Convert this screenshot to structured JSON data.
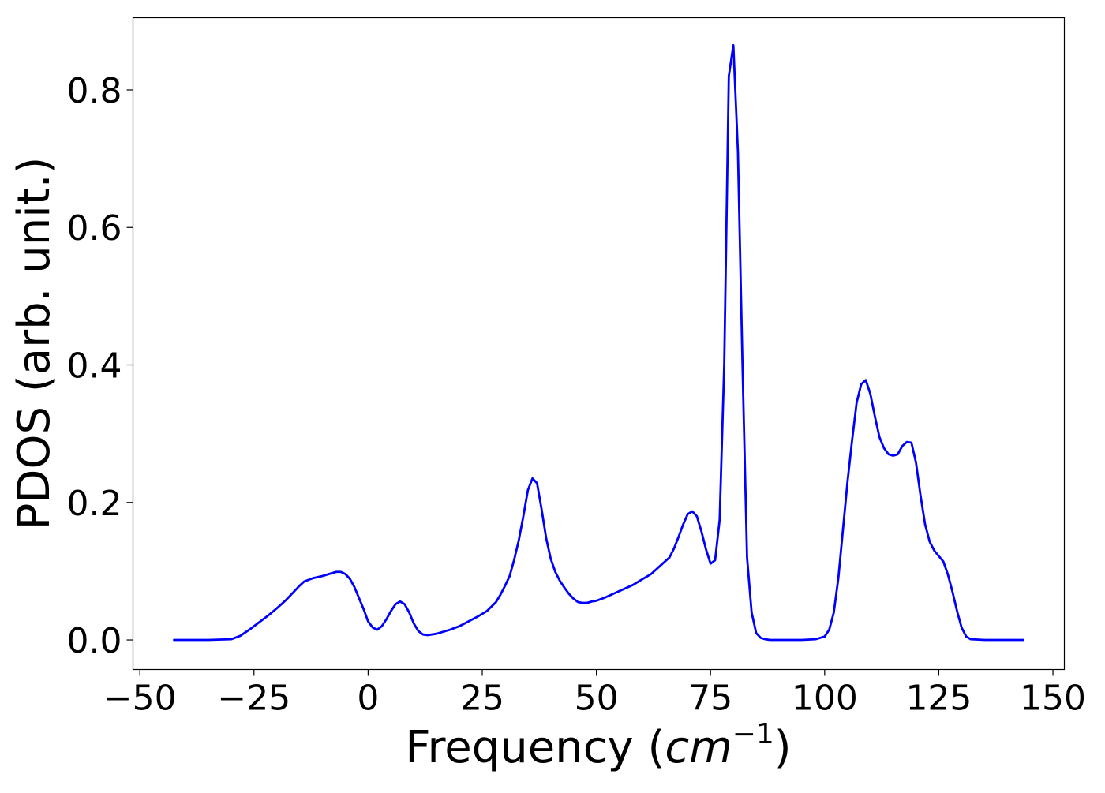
{
  "chart_data": {
    "type": "line",
    "title": "",
    "xlabel_text": "Frequency (",
    "xlabel_math": "cm",
    "xlabel_sup": "−1",
    "xlabel_close": ")",
    "ylabel": "PDOS (arb. unit.)",
    "xlim": [
      -51.5,
      152.5
    ],
    "ylim": [
      -0.043,
      0.905
    ],
    "grid": false,
    "legend": "none",
    "xticks": [
      -50,
      -25,
      0,
      25,
      50,
      75,
      100,
      125,
      150
    ],
    "xtick_labels": [
      "−50",
      "−25",
      "0",
      "25",
      "50",
      "75",
      "100",
      "125",
      "150"
    ],
    "yticks": [
      0.0,
      0.2,
      0.4,
      0.6,
      0.8
    ],
    "ytick_labels": [
      "0.0",
      "0.2",
      "0.4",
      "0.6",
      "0.8"
    ],
    "series": [
      {
        "color": "#0000ff",
        "x": [
          -42.5,
          -35,
          -30,
          -28,
          -26,
          -24,
          -22,
          -20,
          -18,
          -16,
          -15,
          -14,
          -12,
          -10,
          -8,
          -7,
          -6,
          -5,
          -4,
          -3,
          -2,
          -1,
          0,
          1,
          2,
          3,
          4,
          5,
          6,
          7,
          8,
          9,
          10,
          11,
          12,
          13,
          15,
          18,
          20,
          22,
          24,
          26,
          28,
          29,
          30,
          31,
          32,
          33,
          34,
          35,
          36,
          37,
          38,
          39,
          40,
          41,
          42,
          43,
          44,
          45,
          46,
          47,
          48,
          49,
          50,
          52,
          54,
          56,
          58,
          60,
          62,
          64,
          66,
          67,
          68,
          69,
          70,
          71,
          72,
          73,
          74,
          75,
          76,
          77,
          78,
          79,
          80,
          81,
          82,
          83,
          84,
          85,
          86,
          87,
          88,
          89,
          90,
          92,
          95,
          98,
          100,
          101,
          102,
          103,
          104,
          105,
          106,
          107,
          108,
          109,
          110,
          111,
          112,
          113,
          114,
          115,
          116,
          117,
          118,
          119,
          120,
          121,
          122,
          123,
          124,
          125,
          126,
          127,
          128,
          129,
          130,
          131,
          132,
          135,
          140,
          143.5
        ],
        "y": [
          0.0,
          0.0,
          0.001,
          0.006,
          0.015,
          0.025,
          0.035,
          0.046,
          0.058,
          0.072,
          0.079,
          0.085,
          0.09,
          0.093,
          0.097,
          0.099,
          0.099,
          0.096,
          0.089,
          0.077,
          0.061,
          0.045,
          0.027,
          0.018,
          0.015,
          0.02,
          0.03,
          0.042,
          0.052,
          0.056,
          0.052,
          0.04,
          0.024,
          0.013,
          0.008,
          0.007,
          0.009,
          0.015,
          0.02,
          0.027,
          0.034,
          0.042,
          0.055,
          0.066,
          0.079,
          0.093,
          0.117,
          0.145,
          0.18,
          0.218,
          0.235,
          0.228,
          0.19,
          0.148,
          0.118,
          0.099,
          0.086,
          0.076,
          0.067,
          0.06,
          0.055,
          0.054,
          0.054,
          0.056,
          0.057,
          0.062,
          0.068,
          0.074,
          0.08,
          0.088,
          0.096,
          0.108,
          0.12,
          0.133,
          0.15,
          0.168,
          0.183,
          0.187,
          0.18,
          0.158,
          0.132,
          0.111,
          0.116,
          0.175,
          0.4,
          0.82,
          0.865,
          0.71,
          0.4,
          0.12,
          0.04,
          0.01,
          0.003,
          0.001,
          0.0,
          0.0,
          0.0,
          0.0,
          0.0,
          0.001,
          0.005,
          0.015,
          0.04,
          0.09,
          0.16,
          0.23,
          0.29,
          0.345,
          0.372,
          0.378,
          0.358,
          0.325,
          0.295,
          0.279,
          0.27,
          0.268,
          0.27,
          0.282,
          0.288,
          0.287,
          0.258,
          0.21,
          0.168,
          0.143,
          0.13,
          0.122,
          0.114,
          0.095,
          0.07,
          0.042,
          0.018,
          0.005,
          0.001,
          0.0,
          0.0,
          0.0
        ],
        "line_width": 2.8
      }
    ]
  }
}
